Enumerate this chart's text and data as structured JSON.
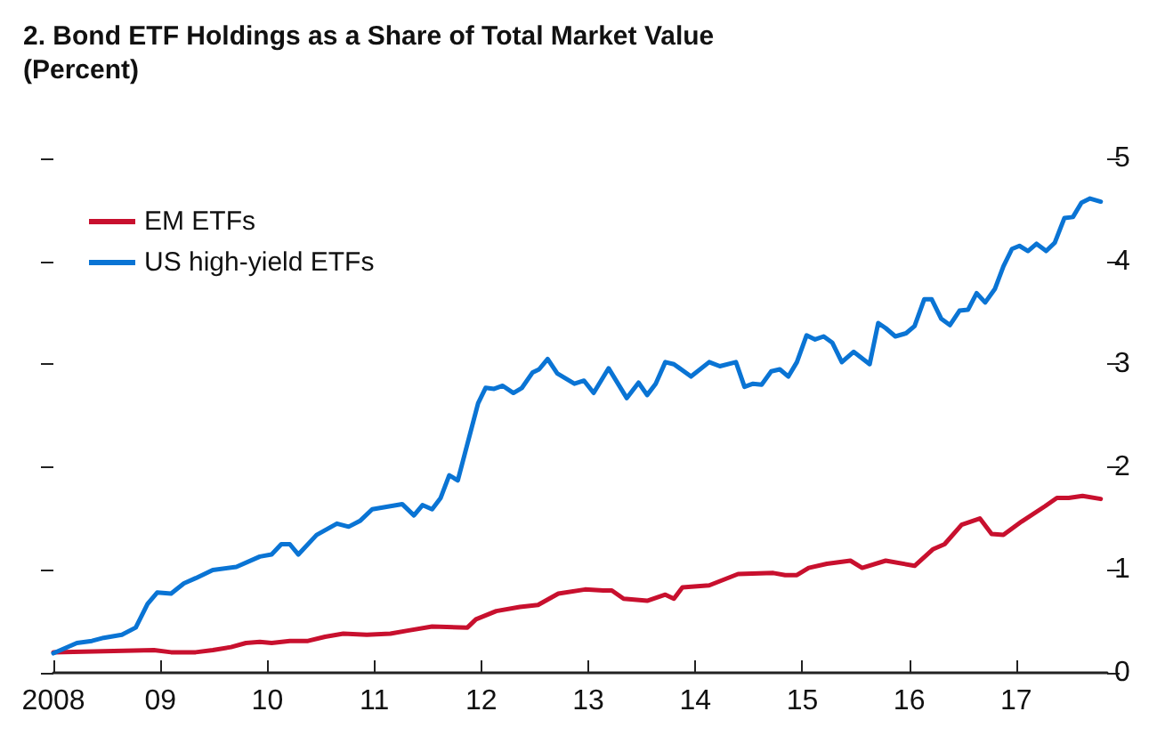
{
  "chart_data": {
    "type": "line",
    "title": "2. Bond ETF Holdings as a Share of Total Market Value\n(Percent)",
    "xlim": [
      2008,
      2017.85
    ],
    "xticks": [
      {
        "value": 2008,
        "label": "2008"
      },
      {
        "value": 2009,
        "label": "09"
      },
      {
        "value": 2010,
        "label": "10"
      },
      {
        "value": 2011,
        "label": "11"
      },
      {
        "value": 2012,
        "label": "12"
      },
      {
        "value": 2013,
        "label": "13"
      },
      {
        "value": 2014,
        "label": "14"
      },
      {
        "value": 2015,
        "label": "15"
      },
      {
        "value": 2016,
        "label": "16"
      },
      {
        "value": 2017,
        "label": "17"
      }
    ],
    "ylim": [
      0,
      5
    ],
    "yticks": [
      0,
      1,
      2,
      3,
      4,
      5
    ],
    "grid": false,
    "legend": "top left",
    "marker": "none",
    "line_style": "solid",
    "series": [
      {
        "name": "EM ETFs",
        "color": "#c8102e",
        "x": [
          2008.0,
          2008.94,
          2009.1,
          2009.33,
          2009.49,
          2009.66,
          2009.8,
          2009.93,
          2010.04,
          2010.21,
          2010.38,
          2010.54,
          2010.71,
          2010.93,
          2011.15,
          2011.31,
          2011.54,
          2011.87,
          2011.95,
          2012.14,
          2012.36,
          2012.53,
          2012.72,
          2012.97,
          2013.14,
          2013.22,
          2013.33,
          2013.55,
          2013.72,
          2013.8,
          2013.88,
          2014.13,
          2014.4,
          2014.73,
          2014.84,
          2014.95,
          2015.06,
          2015.23,
          2015.45,
          2015.56,
          2015.78,
          2016.05,
          2016.22,
          2016.33,
          2016.49,
          2016.66,
          2016.77,
          2016.88,
          2017.05,
          2017.27,
          2017.38,
          2017.49,
          2017.62,
          2017.79
        ],
        "values": [
          0.2,
          0.22,
          0.2,
          0.2,
          0.22,
          0.25,
          0.29,
          0.3,
          0.29,
          0.31,
          0.31,
          0.35,
          0.38,
          0.37,
          0.38,
          0.41,
          0.45,
          0.44,
          0.52,
          0.6,
          0.64,
          0.66,
          0.77,
          0.81,
          0.8,
          0.8,
          0.72,
          0.7,
          0.76,
          0.72,
          0.83,
          0.85,
          0.96,
          0.97,
          0.95,
          0.95,
          1.02,
          1.06,
          1.09,
          1.02,
          1.09,
          1.04,
          1.2,
          1.25,
          1.44,
          1.5,
          1.35,
          1.34,
          1.47,
          1.62,
          1.7,
          1.7,
          1.72,
          1.69
        ]
      },
      {
        "name": "US high-yield ETFs",
        "color": "#0a74d4",
        "x": [
          2008.0,
          2008.22,
          2008.36,
          2008.47,
          2008.64,
          2008.77,
          2008.88,
          2008.97,
          2009.1,
          2009.22,
          2009.33,
          2009.49,
          2009.71,
          2009.93,
          2010.04,
          2010.13,
          2010.21,
          2010.29,
          2010.46,
          2010.65,
          2010.76,
          2010.87,
          2010.98,
          2011.26,
          2011.37,
          2011.45,
          2011.54,
          2011.62,
          2011.7,
          2011.78,
          2011.97,
          2012.04,
          2012.12,
          2012.2,
          2012.3,
          2012.38,
          2012.48,
          2012.54,
          2012.62,
          2012.71,
          2012.87,
          2012.96,
          2013.05,
          2013.19,
          2013.36,
          2013.47,
          2013.55,
          2013.63,
          2013.72,
          2013.8,
          2013.96,
          2014.13,
          2014.23,
          2014.38,
          2014.46,
          2014.54,
          2014.62,
          2014.71,
          2014.79,
          2014.87,
          2014.95,
          2015.04,
          2015.12,
          2015.2,
          2015.28,
          2015.37,
          2015.48,
          2015.63,
          2015.71,
          2015.78,
          2015.87,
          2015.97,
          2016.05,
          2016.14,
          2016.21,
          2016.3,
          2016.38,
          2016.47,
          2016.55,
          2016.63,
          2016.71,
          2016.8,
          2016.88,
          2016.96,
          2017.03,
          2017.11,
          2017.19,
          2017.28,
          2017.36,
          2017.45,
          2017.53,
          2017.61,
          2017.69,
          2017.79
        ],
        "values": [
          0.19,
          0.29,
          0.31,
          0.34,
          0.37,
          0.44,
          0.67,
          0.78,
          0.77,
          0.87,
          0.92,
          1.0,
          1.03,
          1.13,
          1.15,
          1.25,
          1.25,
          1.15,
          1.34,
          1.45,
          1.42,
          1.48,
          1.59,
          1.64,
          1.53,
          1.63,
          1.59,
          1.7,
          1.92,
          1.87,
          2.62,
          2.77,
          2.76,
          2.79,
          2.72,
          2.77,
          2.92,
          2.95,
          3.05,
          2.91,
          2.81,
          2.84,
          2.72,
          2.96,
          2.67,
          2.82,
          2.7,
          2.81,
          3.02,
          3.0,
          2.88,
          3.02,
          2.98,
          3.02,
          2.78,
          2.81,
          2.8,
          2.93,
          2.95,
          2.88,
          3.02,
          3.28,
          3.24,
          3.27,
          3.21,
          3.02,
          3.12,
          3.0,
          3.4,
          3.35,
          3.27,
          3.3,
          3.37,
          3.63,
          3.63,
          3.44,
          3.38,
          3.52,
          3.53,
          3.69,
          3.6,
          3.73,
          3.95,
          4.12,
          4.15,
          4.1,
          4.17,
          4.1,
          4.18,
          4.42,
          4.43,
          4.57,
          4.61,
          4.58
        ]
      }
    ]
  }
}
